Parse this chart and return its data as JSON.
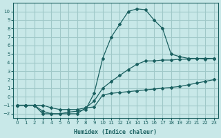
{
  "bg_color": "#c8e8e8",
  "grid_color": "#a0c8c8",
  "line_color": "#1a6060",
  "xlabel": "Humidex (Indice chaleur)",
  "xlim": [
    -0.5,
    23.5
  ],
  "ylim": [
    -2.5,
    11
  ],
  "xticks": [
    0,
    1,
    2,
    3,
    4,
    5,
    6,
    7,
    8,
    9,
    10,
    11,
    12,
    13,
    14,
    15,
    16,
    17,
    18,
    19,
    20,
    21,
    22,
    23
  ],
  "yticks": [
    -2,
    -1,
    0,
    1,
    2,
    3,
    4,
    5,
    6,
    7,
    8,
    9,
    10
  ],
  "curve1_x": [
    0,
    1,
    2,
    3,
    4,
    5,
    6,
    7,
    8,
    9,
    10,
    11,
    12,
    13,
    14,
    15,
    16,
    17,
    18,
    19,
    20,
    21,
    22,
    23
  ],
  "curve1_y": [
    -1,
    -1,
    -1,
    -2,
    -2,
    -2,
    -2,
    -2,
    -1.3,
    -1.2,
    0.2,
    0.4,
    0.5,
    0.6,
    0.7,
    0.8,
    0.9,
    1.0,
    1.1,
    1.2,
    1.4,
    1.6,
    1.8,
    2.0
  ],
  "curve2_x": [
    0,
    1,
    2,
    3,
    4,
    5,
    6,
    7,
    8,
    9,
    10,
    11,
    12,
    13,
    14,
    15,
    16,
    17,
    18,
    19,
    20,
    21,
    22,
    23
  ],
  "curve2_y": [
    -1,
    -1,
    -1,
    -1.7,
    -2,
    -2,
    -1.8,
    -1.7,
    -1.5,
    0.4,
    4.5,
    7,
    8.5,
    10,
    10.3,
    10.2,
    9,
    8,
    5.0,
    4.7,
    4.5,
    4.5,
    4.4,
    4.5
  ],
  "curve3_x": [
    0,
    1,
    2,
    3,
    4,
    5,
    6,
    7,
    8,
    9,
    10,
    11,
    12,
    13,
    14,
    15,
    16,
    17,
    18,
    19,
    20,
    21,
    22,
    23
  ],
  "curve3_y": [
    -1,
    -1,
    -1,
    -1,
    -1.3,
    -1.5,
    -1.5,
    -1.5,
    -1.3,
    -0.5,
    1.0,
    1.8,
    2.5,
    3.2,
    3.8,
    4.2,
    4.2,
    4.3,
    4.3,
    4.4,
    4.4,
    4.5,
    4.5,
    4.5
  ]
}
